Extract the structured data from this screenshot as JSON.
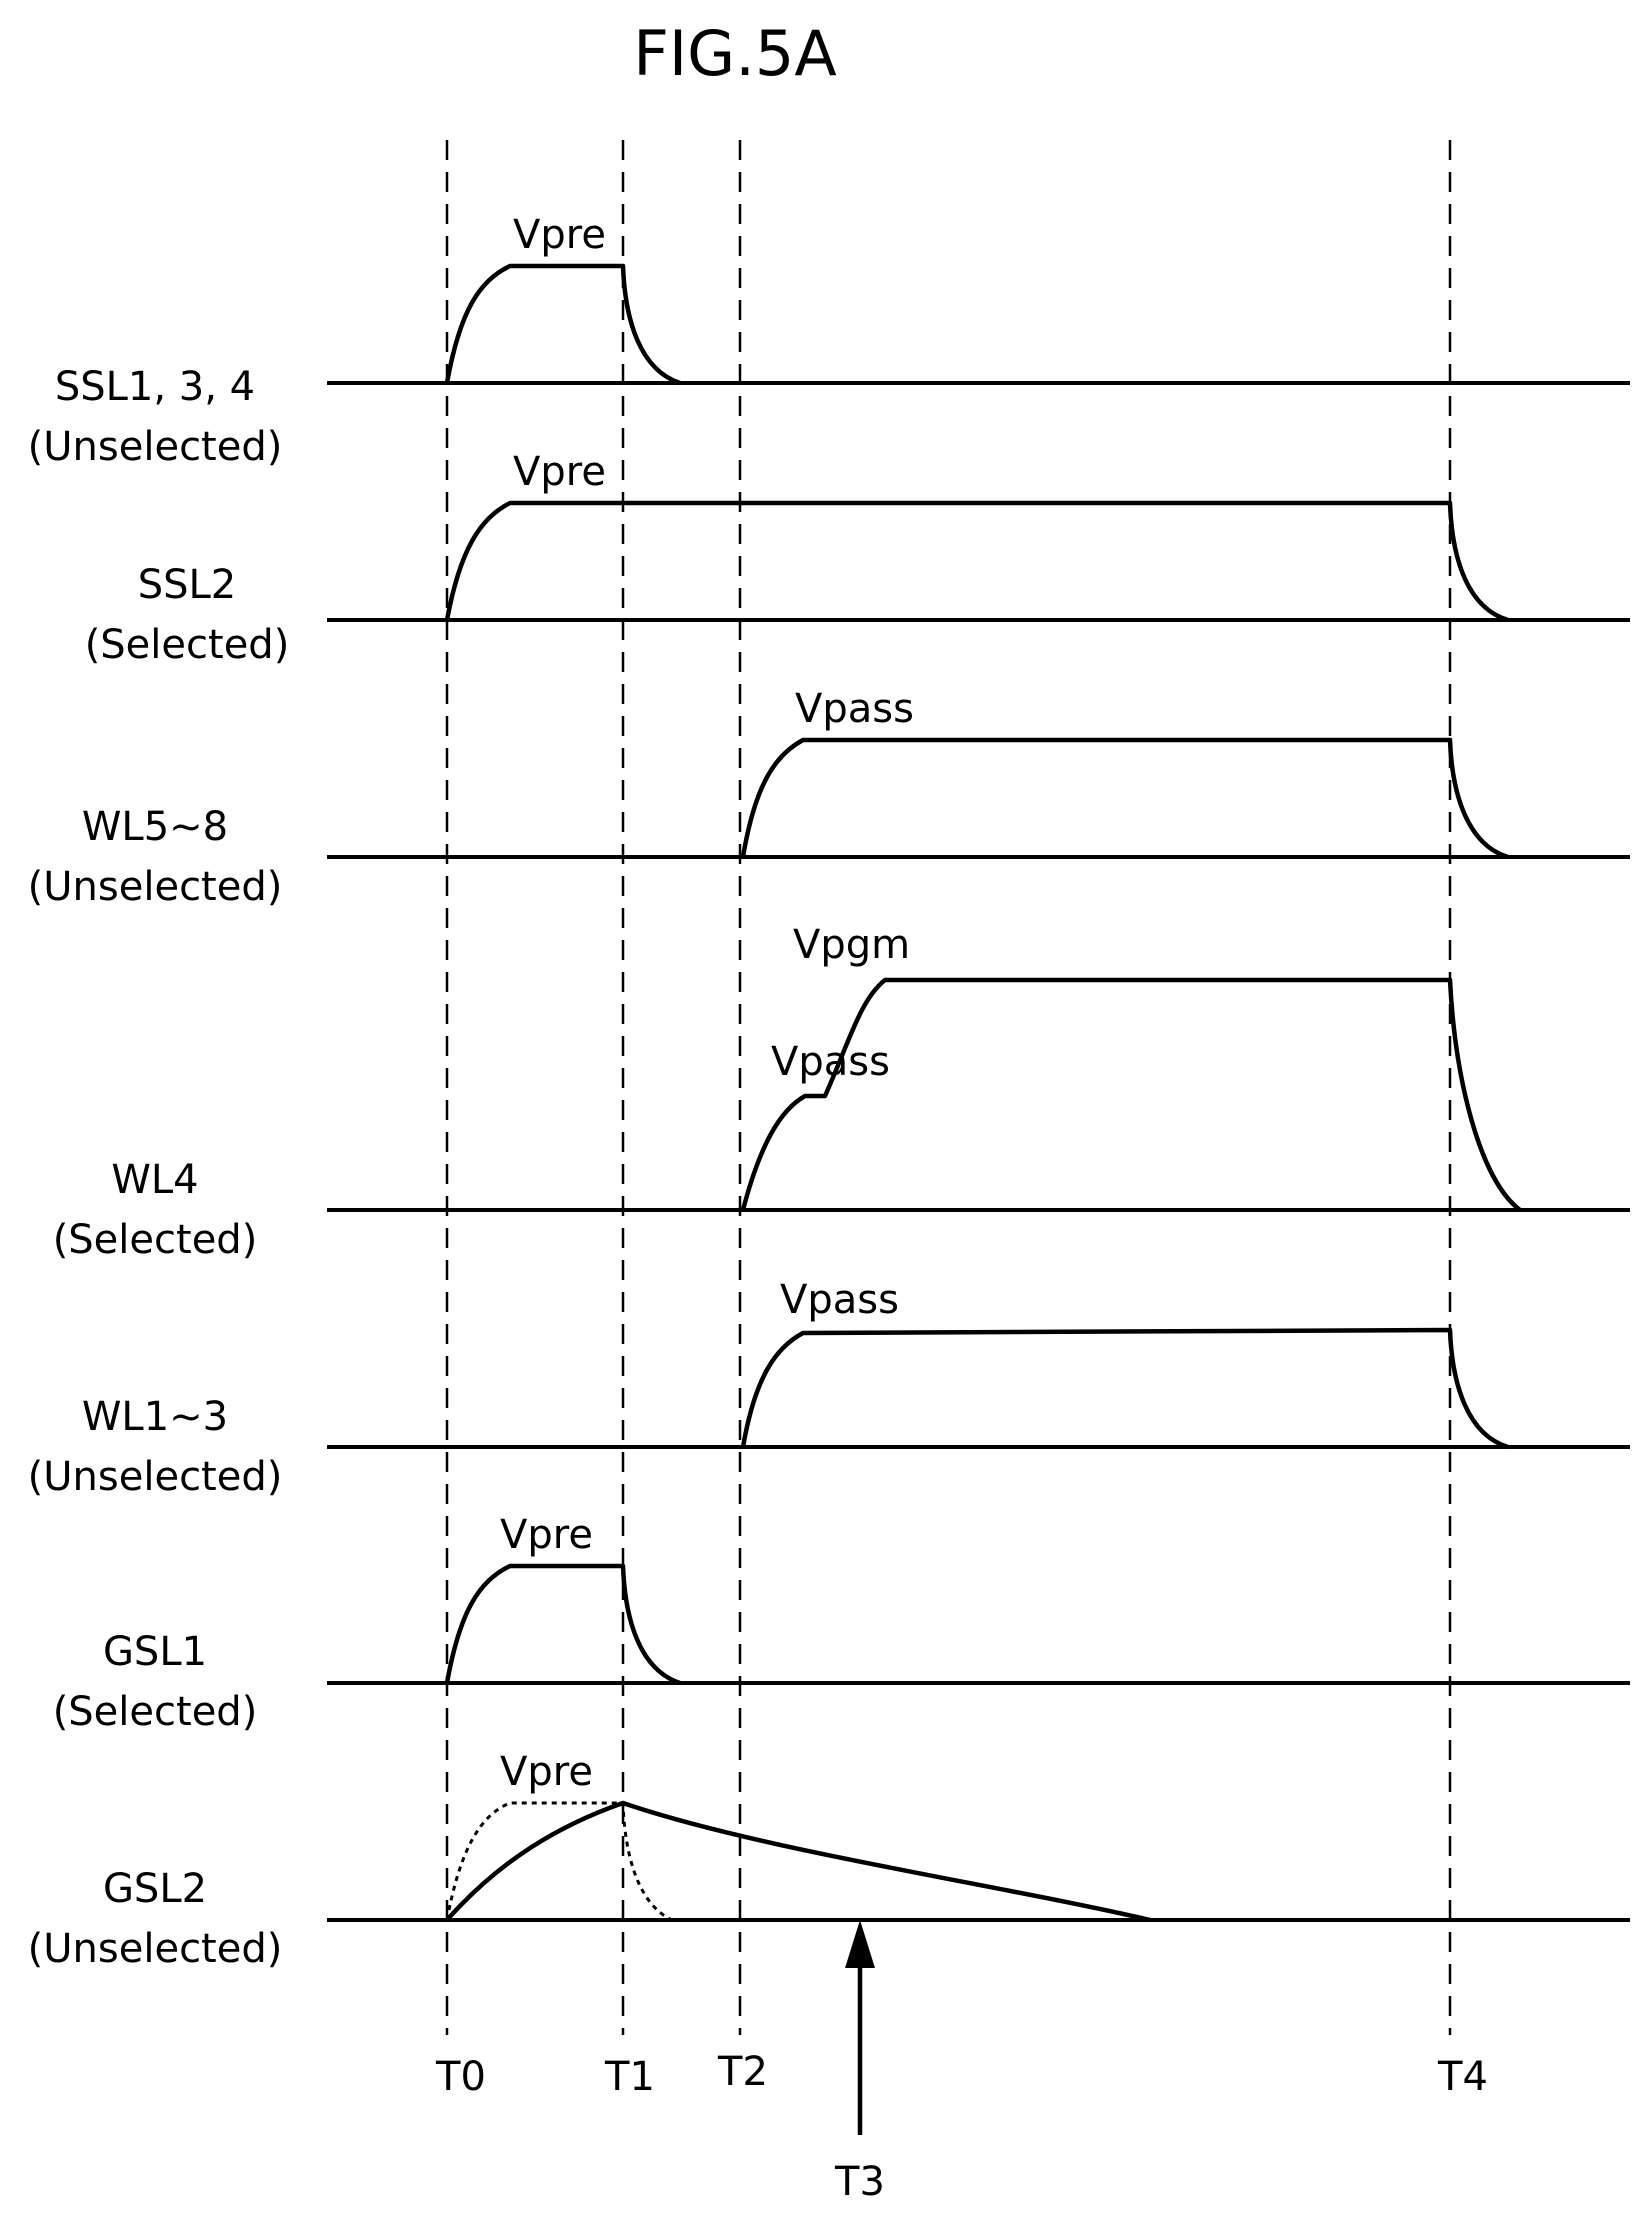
{
  "figure": {
    "title": "FIG.5A"
  },
  "signals": [
    {
      "id": "ssl134",
      "name": "SSL1, 3, 4",
      "state": "(Unselected)",
      "level": "Vpre"
    },
    {
      "id": "ssl2",
      "name": "SSL2",
      "state": "(Selected)",
      "level": "Vpre"
    },
    {
      "id": "wl58",
      "name": "WL5~8",
      "state": "(Unselected)",
      "level": "Vpass"
    },
    {
      "id": "wl4",
      "name": "WL4",
      "state": "(Selected)",
      "level": "Vpgm",
      "level2": "Vpass"
    },
    {
      "id": "wl13",
      "name": "WL1~3",
      "state": "(Unselected)",
      "level": "Vpass"
    },
    {
      "id": "gsl1",
      "name": "GSL1",
      "state": "(Selected)",
      "level": "Vpre"
    },
    {
      "id": "gsl2",
      "name": "GSL2",
      "state": "(Unselected)",
      "level": "Vpre"
    }
  ],
  "time_markers": [
    "T0",
    "T1",
    "T2",
    "T3",
    "T4"
  ]
}
